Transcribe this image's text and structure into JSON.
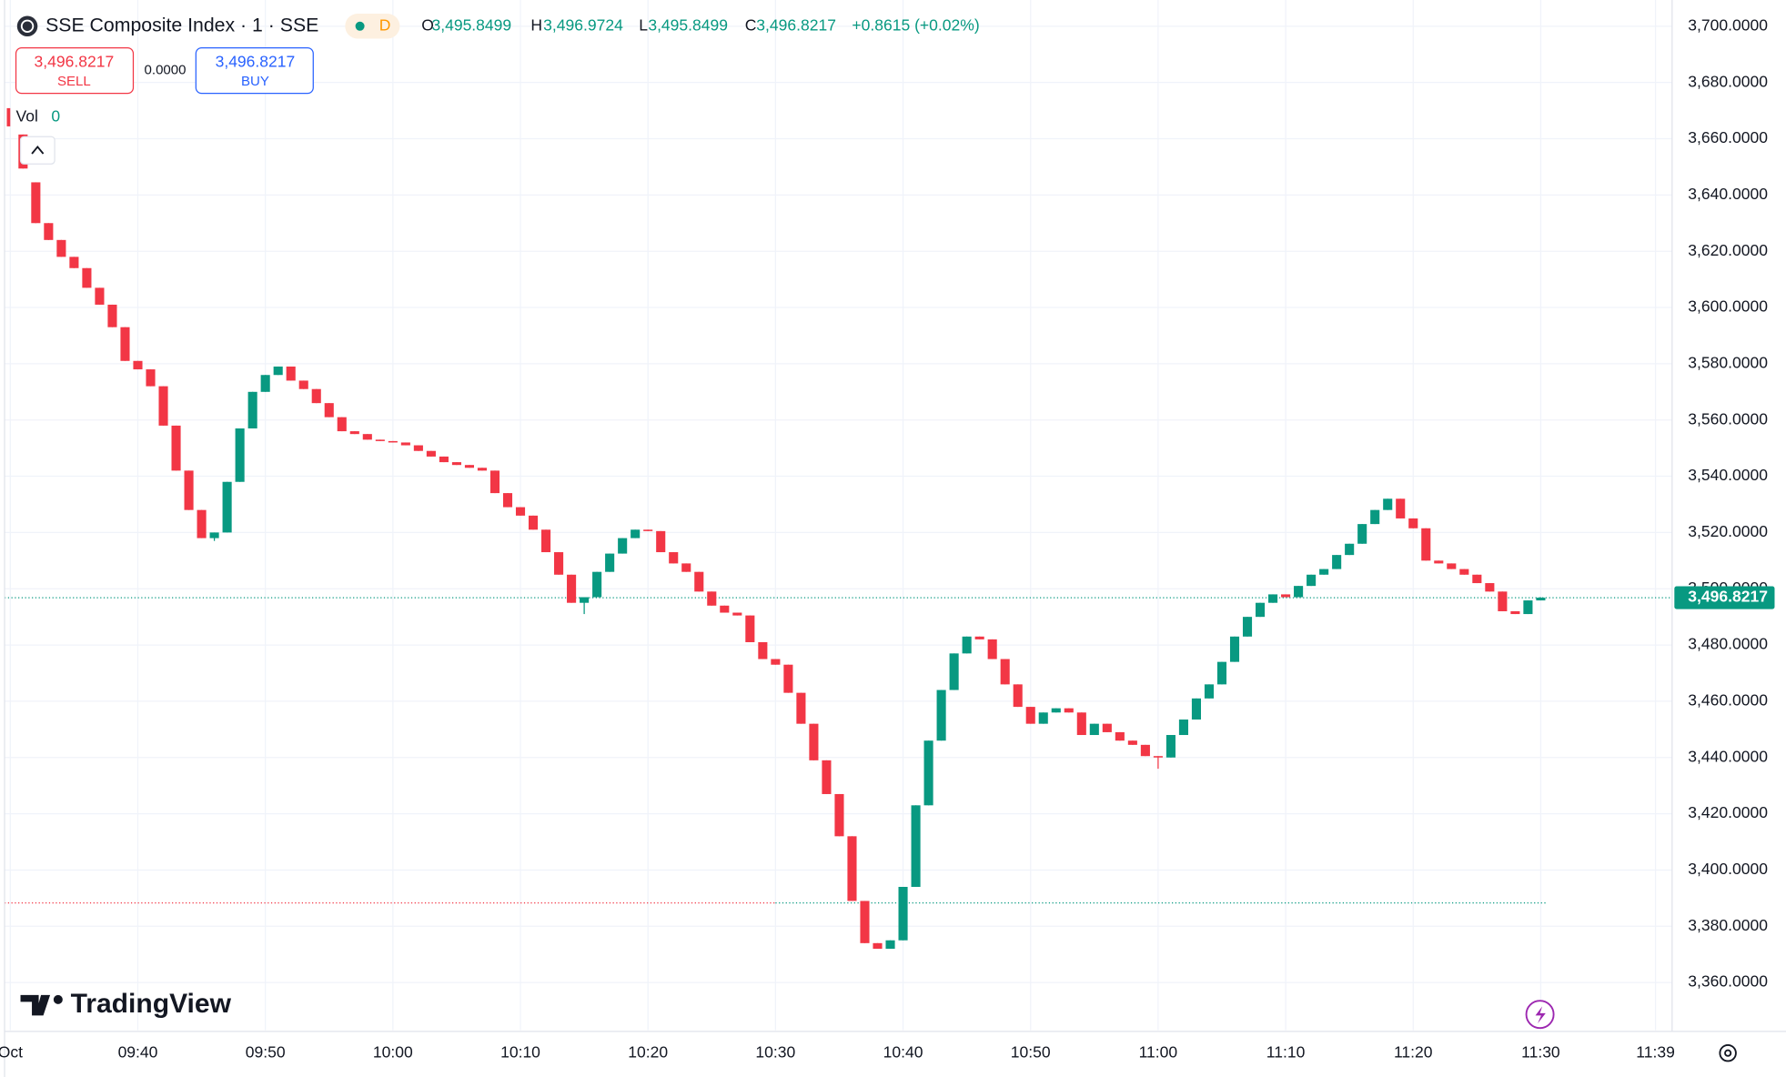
{
  "header": {
    "symbol": "SSE Composite Index · 1 · SSE",
    "badge": "D",
    "ohlc": [
      {
        "key": "O",
        "value": "3,495.8499"
      },
      {
        "key": "H",
        "value": "3,496.9724"
      },
      {
        "key": "L",
        "value": "3,495.8499"
      },
      {
        "key": "C",
        "value": "3,496.8217"
      }
    ],
    "change": "+0.8615 (+0.02%)",
    "sell": {
      "price": "3,496.8217",
      "label": "SELL"
    },
    "spread": "0.0000",
    "buy": {
      "price": "3,496.8217",
      "label": "BUY"
    },
    "volume": {
      "label": "Vol",
      "value": "0"
    },
    "brand": "TradingView"
  },
  "chart_data": {
    "type": "candlestick",
    "up_color": "#089981",
    "down_color": "#f23645",
    "grid": true,
    "x": [
      571,
      572,
      573,
      574,
      575,
      576,
      577,
      578,
      579,
      580,
      581,
      582,
      583,
      584,
      585,
      586,
      587,
      588,
      589,
      590,
      591,
      592,
      593,
      594,
      595,
      596,
      597,
      598,
      599,
      600,
      601,
      602,
      603,
      604,
      605,
      606,
      607,
      608,
      609,
      610,
      611,
      612,
      613,
      614,
      615,
      616,
      617,
      618,
      619,
      620,
      621,
      622,
      623,
      624,
      625,
      626,
      627,
      628,
      629,
      630,
      631,
      632,
      633,
      634,
      635,
      636,
      637,
      638,
      639,
      640,
      641,
      642,
      643,
      644,
      645,
      646,
      647,
      648,
      649,
      650,
      651,
      652,
      653,
      654,
      655,
      656,
      657,
      658,
      659,
      660,
      661,
      662,
      663,
      664,
      665,
      666,
      667,
      668,
      669,
      670,
      671,
      672,
      673,
      674,
      675,
      676,
      677,
      678,
      679,
      680,
      681,
      682,
      683,
      684,
      685,
      686,
      687,
      688,
      689,
      690
    ],
    "open": [
      3661.5,
      3644.5,
      3630,
      3624,
      3618,
      3614,
      3607,
      3601,
      3593,
      3581,
      3578,
      3572,
      3558,
      3542,
      3528,
      3518,
      3520,
      3538,
      3557,
      3570,
      3576,
      3579,
      3574,
      3571,
      3566,
      3561,
      3556,
      3555,
      3553,
      3552.5,
      3552,
      3551,
      3549,
      3547,
      3545,
      3544,
      3543,
      3542,
      3534,
      3529,
      3526,
      3521,
      3513,
      3505,
      3495,
      3497,
      3506,
      3512.5,
      3518,
      3521,
      3520.5,
      3513,
      3509,
      3506,
      3499,
      3494,
      3491.5,
      3490.5,
      3481,
      3475,
      3473,
      3463,
      3452,
      3439,
      3427,
      3412,
      3389,
      3374,
      3372,
      3375,
      3394,
      3423,
      3446,
      3464,
      3477,
      3483,
      3482,
      3475,
      3466,
      3458,
      3452,
      3456,
      3457.5,
      3456,
      3448,
      3452,
      3449,
      3446,
      3444.5,
      3440.5,
      3440,
      3448,
      3453.5,
      3461,
      3466,
      3474,
      3483,
      3490,
      3495,
      3498,
      3497,
      3501,
      3505,
      3507,
      3512,
      3516,
      3523,
      3528,
      3532,
      3525,
      3521.5,
      3510,
      3509,
      3507,
      3505,
      3502,
      3499,
      3492,
      3491,
      3495.8499
    ],
    "high": [
      3661.5,
      3644.5,
      3630,
      3624,
      3618,
      3614,
      3607,
      3601,
      3593,
      3581,
      3578,
      3572,
      3558,
      3542,
      3528,
      3520,
      3538,
      3557,
      3570,
      3576,
      3579,
      3579,
      3574,
      3571,
      3566,
      3561,
      3556,
      3555,
      3553,
      3552.5,
      3552,
      3551,
      3549,
      3547,
      3545,
      3544,
      3543,
      3542,
      3534,
      3529,
      3526,
      3521,
      3513,
      3505,
      3497,
      3506,
      3512.5,
      3518,
      3521,
      3521,
      3520.5,
      3513,
      3509,
      3506,
      3499,
      3494,
      3491.5,
      3490.5,
      3481,
      3475,
      3473,
      3463,
      3452,
      3439,
      3427,
      3412,
      3389,
      3374,
      3375,
      3394,
      3423,
      3446,
      3464,
      3477,
      3483,
      3483,
      3482,
      3475,
      3466,
      3458,
      3456,
      3457.5,
      3457.5,
      3456,
      3452,
      3452,
      3449,
      3446,
      3444.5,
      3440.5,
      3448,
      3453.5,
      3461,
      3466,
      3474,
      3483,
      3490,
      3495,
      3498,
      3498,
      3501,
      3505,
      3507,
      3512,
      3516,
      3523,
      3528,
      3532,
      3532,
      3525,
      3521.5,
      3510,
      3509,
      3507,
      3505,
      3502,
      3499,
      3492,
      3495.8499,
      3496.9724
    ],
    "low": [
      3649.4,
      3630,
      3624,
      3618,
      3614,
      3607,
      3601,
      3593,
      3581,
      3578,
      3572,
      3558,
      3542,
      3528,
      3518,
      3517,
      3520,
      3538,
      3557,
      3570,
      3576,
      3574,
      3571,
      3566,
      3561,
      3556,
      3555,
      3553,
      3552.5,
      3552,
      3551,
      3549,
      3547,
      3545,
      3544,
      3543,
      3542,
      3534,
      3529,
      3526,
      3521,
      3513,
      3505,
      3495,
      3491,
      3497,
      3506,
      3512.5,
      3518,
      3520.5,
      3513,
      3509,
      3506,
      3499,
      3494,
      3491.5,
      3490.5,
      3481,
      3475,
      3473,
      3463,
      3452,
      3439,
      3427,
      3412,
      3389,
      3374,
      3372,
      3372,
      3375,
      3394,
      3423,
      3446,
      3464,
      3477,
      3482,
      3475,
      3466,
      3458,
      3452,
      3452,
      3456,
      3456,
      3448,
      3448,
      3449,
      3446,
      3444.5,
      3440.5,
      3436,
      3440,
      3448,
      3453.5,
      3461,
      3466,
      3474,
      3483,
      3490,
      3495,
      3497,
      3497,
      3501,
      3505,
      3507,
      3512,
      3516,
      3523,
      3528,
      3525,
      3521.5,
      3510,
      3509,
      3507,
      3505,
      3502,
      3499,
      3492,
      3491,
      3491,
      3495.8499
    ],
    "close": [
      3649.4,
      3630,
      3624,
      3618,
      3614,
      3607,
      3601,
      3593,
      3581,
      3578,
      3572,
      3558,
      3542,
      3528,
      3518,
      3520,
      3538,
      3557,
      3570,
      3576,
      3579,
      3574,
      3571,
      3566,
      3561,
      3556,
      3555,
      3553,
      3552.5,
      3552,
      3551,
      3549,
      3547,
      3545,
      3544,
      3543,
      3542,
      3534,
      3529,
      3526,
      3521,
      3513,
      3505,
      3495,
      3497,
      3506,
      3512.5,
      3518,
      3521,
      3520.5,
      3513,
      3509,
      3506,
      3499,
      3494,
      3491.5,
      3490.5,
      3481,
      3475,
      3473,
      3463,
      3452,
      3439,
      3427,
      3412,
      3389,
      3374,
      3372,
      3375,
      3394,
      3423,
      3446,
      3464,
      3477,
      3483,
      3482,
      3475,
      3466,
      3458,
      3452,
      3456,
      3457.5,
      3456,
      3448,
      3452,
      3449,
      3446,
      3444.5,
      3440.5,
      3440,
      3448,
      3453.5,
      3461,
      3466,
      3474,
      3483,
      3490,
      3495,
      3498,
      3497,
      3501,
      3505,
      3507,
      3512,
      3516,
      3523,
      3528,
      3532,
      3525,
      3521.5,
      3510,
      3509,
      3507,
      3505,
      3502,
      3499,
      3492,
      3491,
      3495.8499,
      3496.8217
    ],
    "last_price_label": "3,496.8217",
    "reference_line": 3388.3,
    "xlim": [
      569.55,
      700.3
    ],
    "xticks": [
      {
        "value": 570,
        "label": "Oct"
      },
      {
        "value": 580,
        "label": "09:40"
      },
      {
        "value": 590,
        "label": "09:50"
      },
      {
        "value": 600,
        "label": "10:00"
      },
      {
        "value": 610,
        "label": "10:10"
      },
      {
        "value": 620,
        "label": "10:20"
      },
      {
        "value": 630,
        "label": "10:30"
      },
      {
        "value": 640,
        "label": "10:40"
      },
      {
        "value": 650,
        "label": "10:50"
      },
      {
        "value": 660,
        "label": "11:00"
      },
      {
        "value": 670,
        "label": "11:10"
      },
      {
        "value": 680,
        "label": "11:20"
      },
      {
        "value": 690,
        "label": "11:30"
      },
      {
        "value": 699,
        "label": "11:39"
      }
    ],
    "ylim": [
      3343,
      3707.3
    ],
    "yticks": [
      {
        "value": 3360,
        "label": "3,360.0000"
      },
      {
        "value": 3380,
        "label": "3,380.0000"
      },
      {
        "value": 3400,
        "label": "3,400.0000"
      },
      {
        "value": 3420,
        "label": "3,420.0000"
      },
      {
        "value": 3440,
        "label": "3,440.0000"
      },
      {
        "value": 3460,
        "label": "3,460.0000"
      },
      {
        "value": 3480,
        "label": "3,480.0000"
      },
      {
        "value": 3500,
        "label": "3,500.0000"
      },
      {
        "value": 3520,
        "label": "3,520.0000"
      },
      {
        "value": 3540,
        "label": "3,540.0000"
      },
      {
        "value": 3560,
        "label": "3,560.0000"
      },
      {
        "value": 3580,
        "label": "3,580.0000"
      },
      {
        "value": 3600,
        "label": "3,600.0000"
      },
      {
        "value": 3620,
        "label": "3,620.0000"
      },
      {
        "value": 3640,
        "label": "3,640.0000"
      },
      {
        "value": 3660,
        "label": "3,660.0000"
      },
      {
        "value": 3680,
        "label": "3,680.0000"
      },
      {
        "value": 3700,
        "label": "3,700.0000"
      }
    ]
  }
}
